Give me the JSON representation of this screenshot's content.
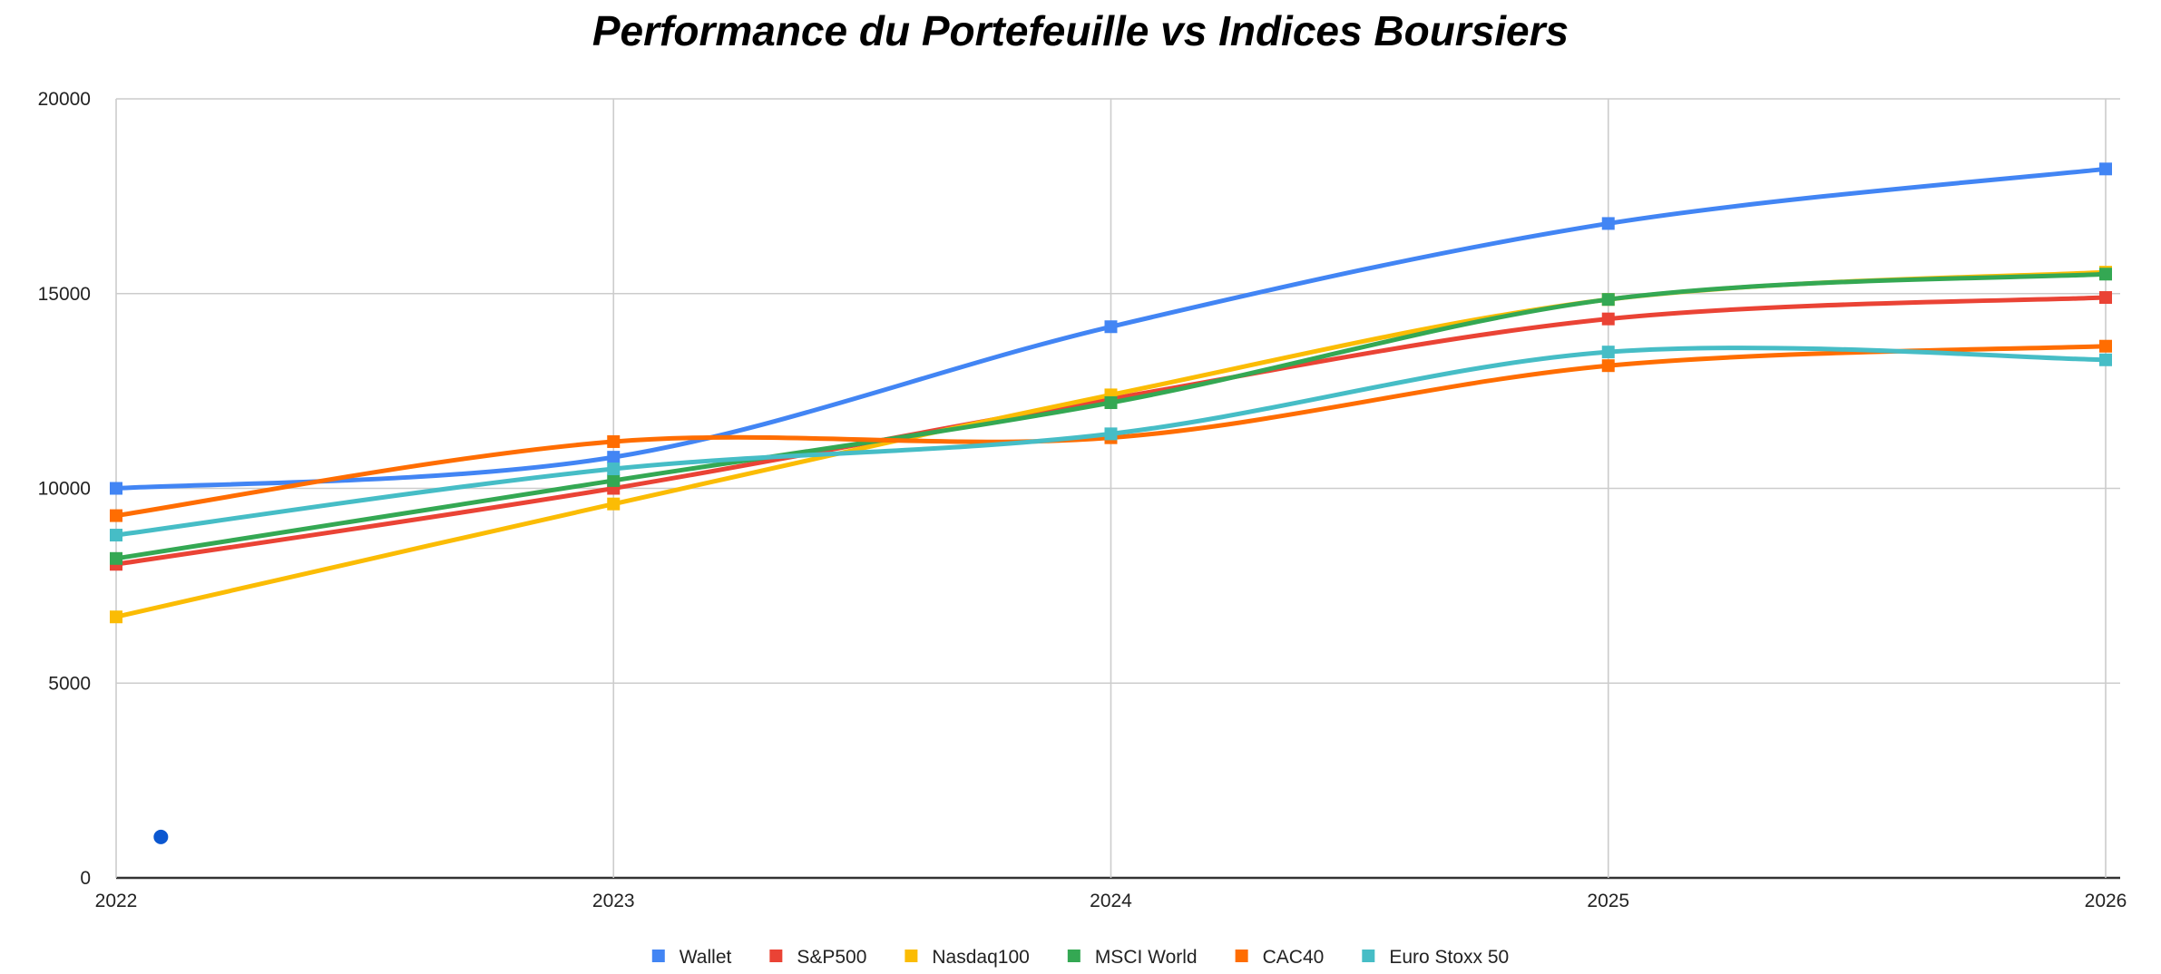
{
  "chart_data": {
    "type": "line",
    "title": "Performance du Portefeuille vs Indices Boursiers",
    "xlabel": "",
    "ylabel": "",
    "x": [
      2022,
      2023,
      2024,
      2025,
      2026
    ],
    "x_tick_labels": [
      "2022",
      "2023",
      "2024",
      "2025",
      "2026"
    ],
    "ylim": [
      0,
      20000
    ],
    "y_ticks": [
      0,
      5000,
      10000,
      15000,
      20000
    ],
    "y_tick_labels": [
      "0",
      "5000",
      "10000",
      "15000",
      "20000"
    ],
    "grid": true,
    "smooth": true,
    "marker": "square",
    "legend_position": "bottom",
    "series": [
      {
        "name": "Wallet",
        "color": "#4285f4",
        "values": [
          10000,
          10800,
          14150,
          16800,
          18200
        ]
      },
      {
        "name": "S&P500",
        "color": "#ea4335",
        "values": [
          8050,
          10000,
          12300,
          14350,
          14900
        ]
      },
      {
        "name": "Nasdaq100",
        "color": "#fbbc04",
        "values": [
          6700,
          9600,
          12400,
          14850,
          15550
        ]
      },
      {
        "name": "MSCI World",
        "color": "#34a853",
        "values": [
          8200,
          10200,
          12200,
          14850,
          15500
        ]
      },
      {
        "name": "CAC40",
        "color": "#ff6d01",
        "values": [
          9300,
          11200,
          11300,
          13150,
          13650
        ]
      },
      {
        "name": "Euro Stoxx 50",
        "color": "#46bdc6",
        "values": [
          8800,
          10500,
          11400,
          13500,
          13300
        ]
      }
    ],
    "extra_point": {
      "x": 2022.09,
      "y": 1050,
      "color": "#0b57d0"
    }
  }
}
